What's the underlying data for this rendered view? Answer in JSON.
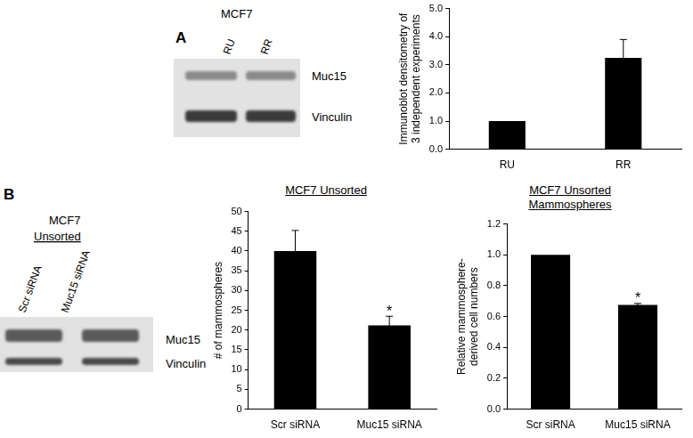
{
  "panel_labels": [
    "A",
    "B"
  ],
  "blots": [
    {
      "title": "MCF7",
      "lanes": [
        "RU",
        "RR"
      ],
      "rows": [
        "Muc15",
        "Vinculin"
      ]
    },
    {
      "title": "MCF7",
      "subtitle": "Unsorted",
      "lanes": [
        "Scr siRNA",
        "Muc15 siRNA"
      ],
      "rows": [
        "Muc15",
        "Vinculin"
      ]
    }
  ],
  "chart_data": [
    {
      "type": "bar",
      "y_label": "Immunoblot densitometry of\n3 independent experiments",
      "categories": [
        "RU",
        "RR"
      ],
      "values": [
        1.0,
        3.25
      ],
      "errors": [
        0,
        0.65
      ],
      "color": "#000000",
      "ylim": [
        0,
        5
      ],
      "yticks": [
        {
          "value": 0,
          "label": "0.0"
        },
        {
          "value": 1,
          "label": "1.0"
        },
        {
          "value": 2,
          "label": "2.0"
        },
        {
          "value": 3,
          "label": "3.0"
        },
        {
          "value": 4,
          "label": "4.0"
        },
        {
          "value": 5,
          "label": "5.0"
        }
      ],
      "grid": false
    },
    {
      "type": "bar",
      "title": "MCF7 Unsorted",
      "y_label": "# of mammospheres",
      "categories": [
        "Scr siRNA",
        "Muc15 siRNA"
      ],
      "values": [
        40,
        21.2
      ],
      "errors": [
        5.2,
        2.3
      ],
      "color": "#000000",
      "ylim": [
        0,
        50
      ],
      "yticks": [
        0,
        5,
        10,
        15,
        20,
        25,
        30,
        35,
        40,
        45,
        50
      ],
      "annotations": [
        {
          "category": "Muc15 siRNA",
          "text": "*"
        }
      ],
      "grid": false
    },
    {
      "type": "bar",
      "title": "MCF7 Unsorted\nMammospheres",
      "y_label": "Relative mammosphere-\nderived cell numbers",
      "categories": [
        "Scr siRNA",
        "Muc15 siRNA"
      ],
      "values": [
        1.0,
        0.675
      ],
      "errors": [
        0,
        0.01
      ],
      "color": "#000000",
      "ylim": [
        0,
        1.2
      ],
      "yticks": [
        {
          "value": 0,
          "label": "0.0"
        },
        {
          "value": 0.2,
          "label": "0.2"
        },
        {
          "value": 0.4,
          "label": "0.4"
        },
        {
          "value": 0.6,
          "label": "0.6"
        },
        {
          "value": 0.8,
          "label": "0.8"
        },
        {
          "value": 1.0,
          "label": "1.0"
        },
        {
          "value": 1.2,
          "label": "1.2"
        }
      ],
      "annotations": [
        {
          "category": "Muc15 siRNA",
          "text": "*"
        }
      ],
      "grid": false
    }
  ]
}
